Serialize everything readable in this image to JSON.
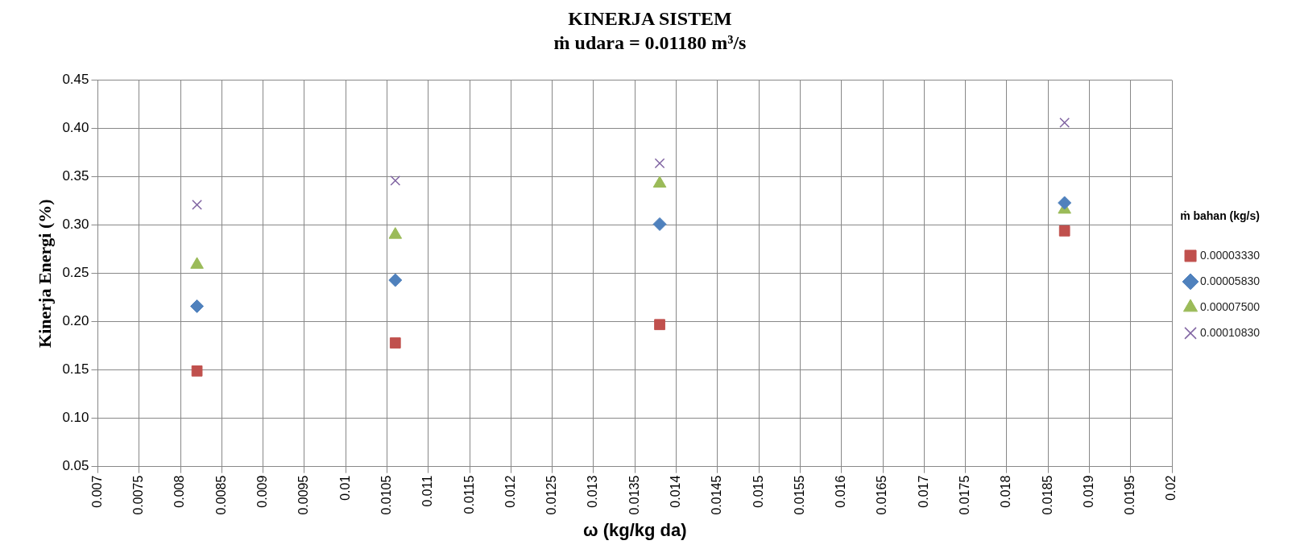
{
  "chart_data": {
    "type": "scatter",
    "title": "KINERJA SISTEM",
    "subtitle": "ṁ udara = 0.01180 m³/s",
    "xlabel": "ω (kg/kg da)",
    "ylabel": "Kinerja Energi (%)",
    "legend_title": "ṁ bahan (kg/s)",
    "legend": "right",
    "grid": true,
    "x": [
      0.0082,
      0.0106,
      0.0138,
      0.0187
    ],
    "xlim": [
      0.007,
      0.02
    ],
    "xticks": [
      0.007,
      0.0075,
      0.008,
      0.0085,
      0.009,
      0.0095,
      0.01,
      0.0105,
      0.011,
      0.0115,
      0.012,
      0.0125,
      0.013,
      0.0135,
      0.014,
      0.0145,
      0.015,
      0.0155,
      0.016,
      0.0165,
      0.017,
      0.0175,
      0.018,
      0.0185,
      0.019,
      0.0195,
      0.02
    ],
    "ylim": [
      0.05,
      0.45
    ],
    "yticks": [
      {
        "value": 0.05,
        "label": "0.05"
      },
      {
        "value": 0.1,
        "label": "0.10"
      },
      {
        "value": 0.15,
        "label": "0.15"
      },
      {
        "value": 0.2,
        "label": "0.20"
      },
      {
        "value": 0.25,
        "label": "0.25"
      },
      {
        "value": 0.3,
        "label": "0.30"
      },
      {
        "value": 0.35,
        "label": "0.35"
      },
      {
        "value": 0.4,
        "label": "0.40"
      },
      {
        "value": 0.45,
        "label": "0.45"
      }
    ],
    "series": [
      {
        "name": "0.00003330",
        "color": "#c0504d",
        "marker": "square",
        "values": [
          0.149,
          0.178,
          0.197,
          0.294
        ]
      },
      {
        "name": "0.00005830",
        "color": "#4f81bd",
        "marker": "diamond",
        "values": [
          0.216,
          0.243,
          0.301,
          0.323
        ]
      },
      {
        "name": "0.00007500",
        "color": "#9bbb59",
        "marker": "triangle",
        "values": [
          0.259,
          0.29,
          0.343,
          0.316
        ]
      },
      {
        "name": "0.00010830",
        "color": "#8064a2",
        "marker": "cross",
        "values": [
          0.321,
          0.346,
          0.364,
          0.406
        ]
      }
    ]
  }
}
